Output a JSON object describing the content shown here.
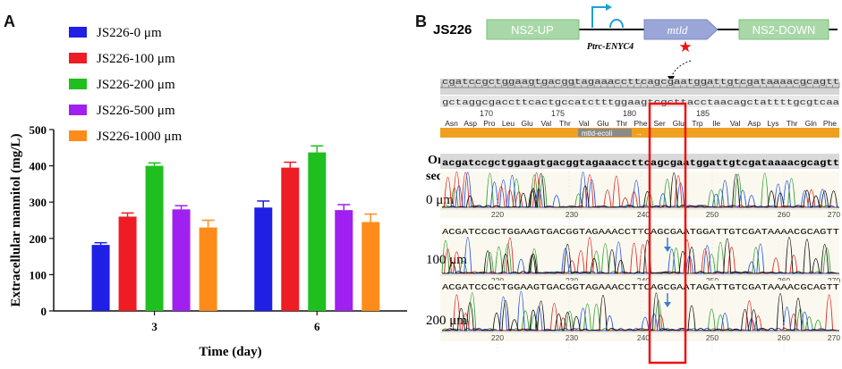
{
  "panel_a": {
    "label": "A",
    "chart_data": {
      "type": "bar",
      "categories": [
        "3",
        "6"
      ],
      "series": [
        {
          "name": "JS226-0 μm",
          "color": "#1f1fe6",
          "values": [
            182,
            285
          ],
          "errors": [
            6,
            18
          ]
        },
        {
          "name": "JS226-100 μm",
          "color": "#ee1c24",
          "values": [
            260,
            395
          ],
          "errors": [
            10,
            15
          ]
        },
        {
          "name": "JS226-200 μm",
          "color": "#1fbf1f",
          "values": [
            400,
            437
          ],
          "errors": [
            8,
            18
          ]
        },
        {
          "name": "JS226-500 μm",
          "color": "#a020f0",
          "values": [
            280,
            278
          ],
          "errors": [
            10,
            15
          ]
        },
        {
          "name": "JS226-1000 μm",
          "color": "#ff8c1a",
          "values": [
            230,
            245
          ],
          "errors": [
            20,
            22
          ]
        }
      ],
      "xlabel": "Time (day)",
      "ylabel": "Extracellular mannitol (mg/L)",
      "ylim": [
        0,
        500
      ],
      "yticks": [
        0,
        100,
        200,
        300,
        400,
        500
      ],
      "legend": "top-left"
    }
  },
  "panel_b": {
    "label": "B",
    "strain": "JS226",
    "gene_map": {
      "left_block": "NS2-UP",
      "promoter": "Ptrc-ENYC4",
      "gene": "mtld",
      "right_block": "NS2-DOWN"
    },
    "ruler_top": "cgatccgctggaagtgacggtagaaaccttcagcgaatggattgtcgataaaacgcagtt",
    "ruler_complement": "gctaggcgaccttcactgccatctttggaagtcgcttacctaacagctattttgcgtcaa",
    "ruler_numbers": [
      "170",
      "175",
      "180",
      "185"
    ],
    "amino_acids": [
      "Asn",
      "Asp",
      "Pro",
      "Leu",
      "Glu",
      "Val",
      "Thr",
      "Val",
      "Glu",
      "Thr",
      "Phe",
      "Ser",
      "Glu",
      "Trp",
      "Ile",
      "Val",
      "Asp",
      "Lys",
      "Thr",
      "Gln",
      "Phe"
    ],
    "feature_label": "mtld-ecoli",
    "original_label_1": "Original",
    "original_label_2": "sequence",
    "original_sequence": "acgatccgctggaagtgacggtagaaaccttcagcgaatggattgtcgataaaacgcagtt",
    "traces": [
      {
        "label": "0 μm",
        "sequence": "",
        "ticks": [
          "220",
          "230",
          "240",
          "250",
          "260",
          "270"
        ]
      },
      {
        "label": "100 μm",
        "sequence": "ACGATCCGCTGGAAGTGACGGTAGAAACCTTCAGCGAATGGATTGTCGATAAAACGCAGTT",
        "ticks": [
          "220",
          "230",
          "240",
          "250",
          "260",
          "270"
        ]
      },
      {
        "label": "200 μm",
        "sequence": "ACGATCCGCTGGAAGTGACGGTAGAAACCTTCAGCGAATAGATTGTCGATAAAACGCAGTT",
        "ticks": [
          "220",
          "230",
          "240",
          "250",
          "260",
          "270"
        ]
      }
    ]
  }
}
